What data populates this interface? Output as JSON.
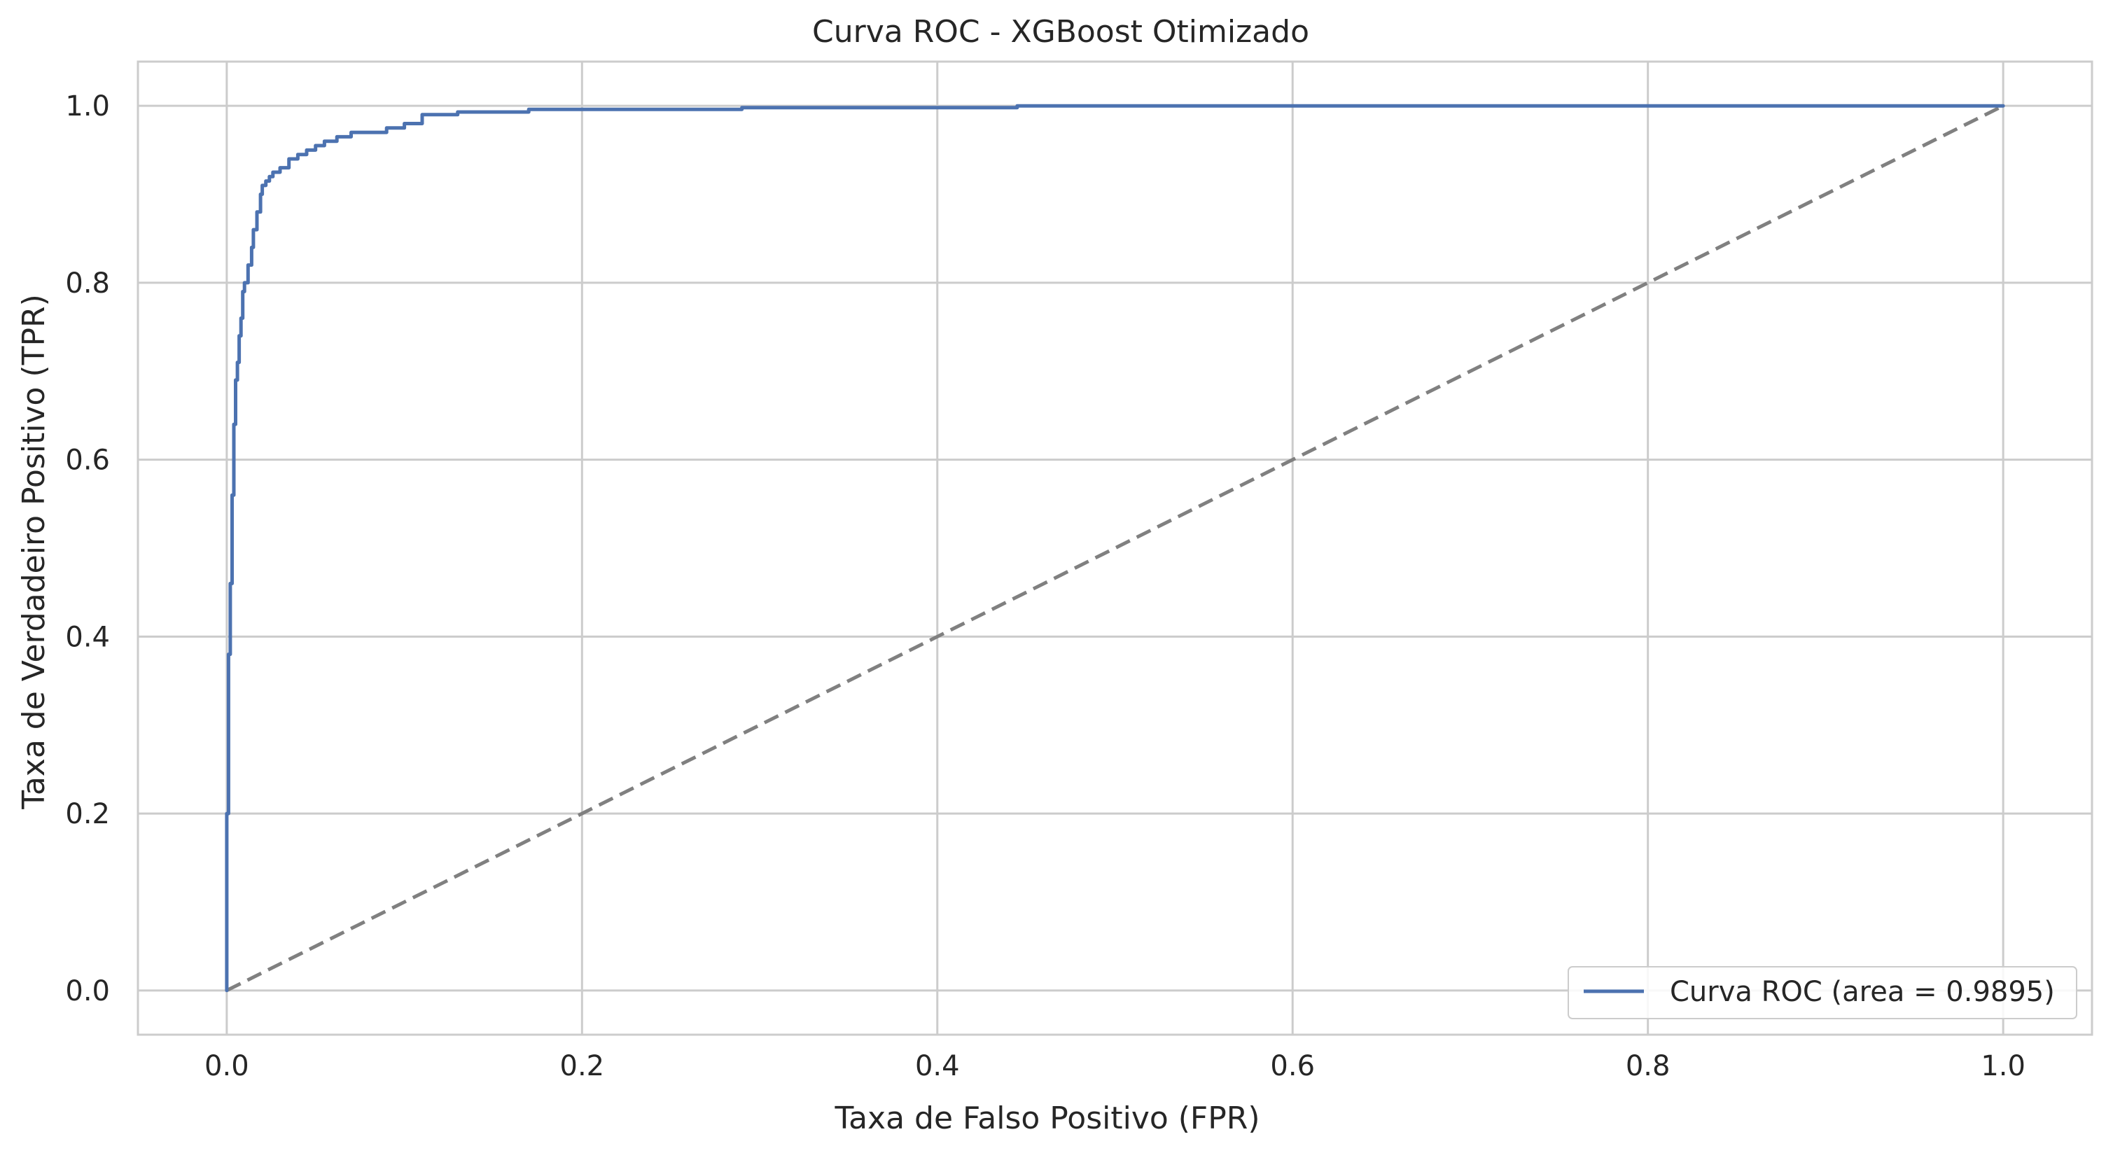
{
  "chart_data": {
    "type": "line",
    "title": "Curva ROC - XGBoost Otimizado",
    "xlabel": "Taxa de Falso Positivo (FPR)",
    "ylabel": "Taxa de Verdadeiro Positivo (TPR)",
    "xlim": [
      -0.05,
      1.05
    ],
    "ylim": [
      -0.05,
      1.05
    ],
    "xticks": [
      0.0,
      0.2,
      0.4,
      0.6,
      0.8,
      1.0
    ],
    "yticks": [
      0.0,
      0.2,
      0.4,
      0.6,
      0.8,
      1.0
    ],
    "xtick_labels": [
      "0.0",
      "0.2",
      "0.4",
      "0.6",
      "0.8",
      "1.0"
    ],
    "ytick_labels": [
      "0.0",
      "0.2",
      "0.4",
      "0.6",
      "0.8",
      "1.0"
    ],
    "grid": true,
    "legend_position": "lower-right",
    "series": [
      {
        "name": "Curva ROC (area = 0.9895)",
        "color": "#4c72b0",
        "style": "solid",
        "x": [
          0.0,
          0.0,
          0.001,
          0.001,
          0.002,
          0.002,
          0.003,
          0.003,
          0.004,
          0.004,
          0.005,
          0.005,
          0.006,
          0.006,
          0.007,
          0.007,
          0.008,
          0.008,
          0.009,
          0.009,
          0.01,
          0.01,
          0.012,
          0.012,
          0.014,
          0.014,
          0.015,
          0.015,
          0.017,
          0.017,
          0.019,
          0.019,
          0.02,
          0.02,
          0.022,
          0.022,
          0.024,
          0.024,
          0.026,
          0.026,
          0.03,
          0.03,
          0.035,
          0.035,
          0.04,
          0.04,
          0.045,
          0.045,
          0.05,
          0.05,
          0.055,
          0.055,
          0.062,
          0.062,
          0.07,
          0.07,
          0.09,
          0.09,
          0.1,
          0.1,
          0.11,
          0.11,
          0.13,
          0.13,
          0.17,
          0.17,
          0.29,
          0.29,
          0.445,
          0.445,
          1.0
        ],
        "y": [
          0.0,
          0.2,
          0.2,
          0.38,
          0.38,
          0.46,
          0.46,
          0.56,
          0.56,
          0.64,
          0.64,
          0.69,
          0.69,
          0.71,
          0.71,
          0.74,
          0.74,
          0.76,
          0.76,
          0.79,
          0.79,
          0.8,
          0.8,
          0.82,
          0.82,
          0.84,
          0.84,
          0.86,
          0.86,
          0.88,
          0.88,
          0.9,
          0.9,
          0.91,
          0.91,
          0.915,
          0.915,
          0.92,
          0.92,
          0.925,
          0.925,
          0.93,
          0.93,
          0.94,
          0.94,
          0.945,
          0.945,
          0.95,
          0.95,
          0.955,
          0.955,
          0.96,
          0.96,
          0.965,
          0.965,
          0.97,
          0.97,
          0.975,
          0.975,
          0.98,
          0.98,
          0.99,
          0.99,
          0.993,
          0.993,
          0.996,
          0.996,
          0.998,
          0.998,
          1.0,
          1.0
        ]
      },
      {
        "name": "",
        "color": "#808080",
        "style": "dashed",
        "x": [
          0.0,
          1.0
        ],
        "y": [
          0.0,
          1.0
        ]
      }
    ]
  }
}
